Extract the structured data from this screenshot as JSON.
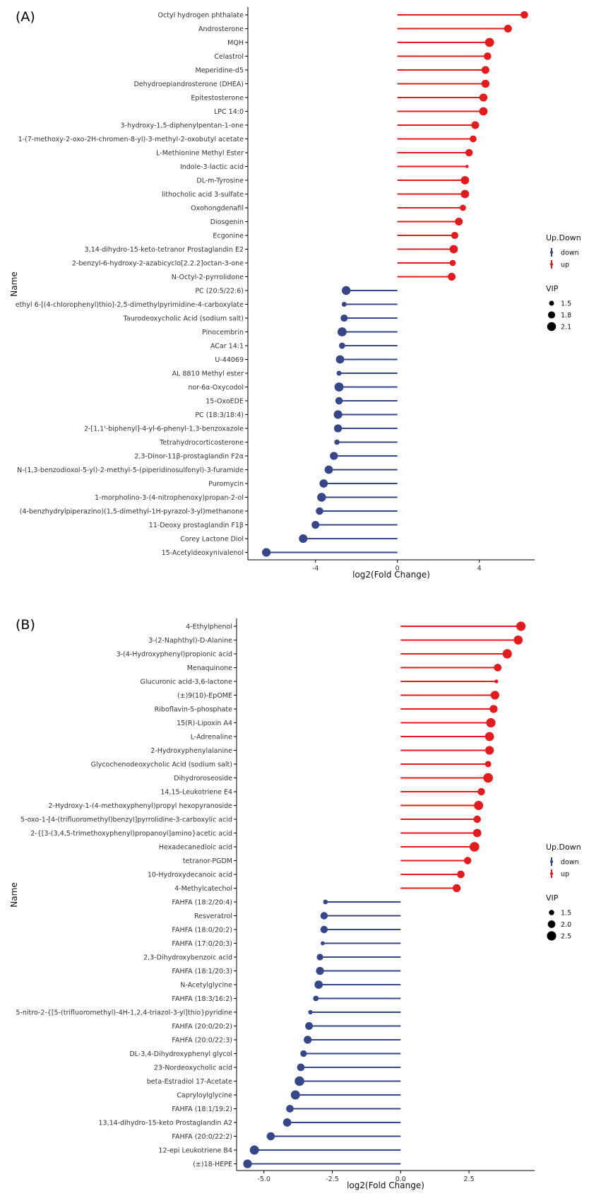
{
  "colors": {
    "up": "#E41A1C",
    "down": "#36468A",
    "axis": "#000000"
  },
  "chart_data": [
    {
      "tag": "(A)",
      "type": "lollipop",
      "xlabel": "log2(Fold Change)",
      "ylabel": "Name",
      "xlim": [
        -7.3,
        6.7
      ],
      "xticks": [
        {
          "v": -4,
          "label": "-4"
        },
        {
          "v": 0,
          "label": "0"
        },
        {
          "v": 4,
          "label": "4"
        }
      ],
      "legend": {
        "position": "right",
        "updown_title": "Up.Down",
        "down_label": "down",
        "up_label": "up",
        "vip_title": "VIP",
        "vip_levels": [
          {
            "label": "1.5",
            "vip": 1.5
          },
          {
            "label": "1.8",
            "vip": 1.8
          },
          {
            "label": "2.1",
            "vip": 2.1
          }
        ],
        "vip_range": [
          1.35,
          2.2
        ]
      },
      "points": [
        {
          "name": "Octyl hydrogen phthalate",
          "fc": 6.2,
          "vip": 1.85,
          "dir": "up"
        },
        {
          "name": "Androsterone",
          "fc": 5.4,
          "vip": 1.9,
          "dir": "up"
        },
        {
          "name": "MQH",
          "fc": 4.5,
          "vip": 2.15,
          "dir": "up"
        },
        {
          "name": "Celastrol",
          "fc": 4.4,
          "vip": 1.85,
          "dir": "up"
        },
        {
          "name": "Meperidine-d5",
          "fc": 4.3,
          "vip": 1.9,
          "dir": "up"
        },
        {
          "name": "Dehydroepiandrosterone (DHEA)",
          "fc": 4.3,
          "vip": 1.95,
          "dir": "up"
        },
        {
          "name": "Epitestosterone",
          "fc": 4.2,
          "vip": 1.95,
          "dir": "up"
        },
        {
          "name": "LPC 14:0",
          "fc": 4.2,
          "vip": 2.0,
          "dir": "up"
        },
        {
          "name": "3-hydroxy-1,5-diphenylpentan-1-one",
          "fc": 3.8,
          "vip": 1.9,
          "dir": "up"
        },
        {
          "name": "1-(7-methoxy-2-oxo-2H-chromen-8-yl)-3-methyl-2-oxobutyl acetate",
          "fc": 3.7,
          "vip": 1.75,
          "dir": "up"
        },
        {
          "name": "L-Methionine Methyl Ester",
          "fc": 3.5,
          "vip": 1.85,
          "dir": "up"
        },
        {
          "name": "Indole-3-lactic acid",
          "fc": 3.4,
          "vip": 1.35,
          "dir": "up"
        },
        {
          "name": "DL-m-Tyrosine",
          "fc": 3.3,
          "vip": 2.0,
          "dir": "up"
        },
        {
          "name": "lithocholic acid 3-sulfate",
          "fc": 3.3,
          "vip": 2.0,
          "dir": "up"
        },
        {
          "name": "Oxohongdenafil",
          "fc": 3.2,
          "vip": 1.65,
          "dir": "up"
        },
        {
          "name": "Diosgenin",
          "fc": 3.0,
          "vip": 1.9,
          "dir": "up"
        },
        {
          "name": "Ecgonine",
          "fc": 2.8,
          "vip": 1.8,
          "dir": "up"
        },
        {
          "name": "3,14-dihydro-15-keto-tetranor Prostaglandin E2",
          "fc": 2.75,
          "vip": 2.0,
          "dir": "up"
        },
        {
          "name": "2-benzyl-6-hydroxy-2-azabicyclo[2.2.2]octan-3-one",
          "fc": 2.7,
          "vip": 1.65,
          "dir": "up"
        },
        {
          "name": "N-Octyl-2-pyrrolidone",
          "fc": 2.65,
          "vip": 1.9,
          "dir": "up"
        },
        {
          "name": "PC (20:5/22:6)",
          "fc": -2.5,
          "vip": 2.1,
          "dir": "down"
        },
        {
          "name": "ethyl 6-[(4-chlorophenyl)thio]-2,5-dimethylpyrimidine-4-carboxylate",
          "fc": -2.6,
          "vip": 1.5,
          "dir": "down"
        },
        {
          "name": "Taurodeoxycholic Acid (sodium salt)",
          "fc": -2.6,
          "vip": 1.8,
          "dir": "down"
        },
        {
          "name": "Pinocembrin",
          "fc": -2.7,
          "vip": 2.15,
          "dir": "down"
        },
        {
          "name": "ACar 14:1",
          "fc": -2.7,
          "vip": 1.65,
          "dir": "down"
        },
        {
          "name": "U-44069",
          "fc": -2.8,
          "vip": 2.0,
          "dir": "down"
        },
        {
          "name": "AL 8810 Methyl ester",
          "fc": -2.85,
          "vip": 1.5,
          "dir": "down"
        },
        {
          "name": "nor-6α-Oxycodol",
          "fc": -2.85,
          "vip": 2.15,
          "dir": "down"
        },
        {
          "name": "15-OxoEDE",
          "fc": -2.85,
          "vip": 1.85,
          "dir": "down"
        },
        {
          "name": "PC (18:3/18:4)",
          "fc": -2.9,
          "vip": 2.05,
          "dir": "down"
        },
        {
          "name": "2-[1,1'-biphenyl]-4-yl-6-phenyl-1,3-benzoxazole",
          "fc": -2.9,
          "vip": 1.95,
          "dir": "down"
        },
        {
          "name": "Tetrahydrocorticosterone",
          "fc": -2.95,
          "vip": 1.55,
          "dir": "down"
        },
        {
          "name": "2,3-Dinor-11β-prostaglandin F2α",
          "fc": -3.1,
          "vip": 1.95,
          "dir": "down"
        },
        {
          "name": "N-(1,3-benzodioxol-5-yl)-2-methyl-5-(piperidinosulfonyl)-3-furamide",
          "fc": -3.35,
          "vip": 2.0,
          "dir": "down"
        },
        {
          "name": "Puromycin",
          "fc": -3.6,
          "vip": 2.0,
          "dir": "down"
        },
        {
          "name": "1-morpholino-3-(4-nitrophenoxy)propan-2-ol",
          "fc": -3.7,
          "vip": 2.1,
          "dir": "down"
        },
        {
          "name": "(4-benzhydrylpiperazino)(1,5-dimethyl-1H-pyrazol-3-yl)methanone",
          "fc": -3.8,
          "vip": 1.85,
          "dir": "down"
        },
        {
          "name": "11-Deoxy prostaglandin F1β",
          "fc": -4.0,
          "vip": 1.9,
          "dir": "down"
        },
        {
          "name": "Corey Lactone Diol",
          "fc": -4.6,
          "vip": 2.05,
          "dir": "down"
        },
        {
          "name": "15-Acetyldeoxynivalenol",
          "fc": -6.4,
          "vip": 2.05,
          "dir": "down"
        }
      ]
    },
    {
      "tag": "(B)",
      "type": "lollipop",
      "xlabel": "log2(Fold Change)",
      "ylabel": "Name",
      "xlim": [
        -6.0,
        4.9
      ],
      "xticks": [
        {
          "v": -5,
          "label": "-5.0"
        },
        {
          "v": -2.5,
          "label": "-2.5"
        },
        {
          "v": 0,
          "label": "0.0"
        },
        {
          "v": 2.5,
          "label": "2.5"
        }
      ],
      "legend": {
        "position": "right",
        "updown_title": "Up.Down",
        "down_label": "down",
        "up_label": "up",
        "vip_title": "VIP",
        "vip_levels": [
          {
            "label": "1.5",
            "vip": 1.5
          },
          {
            "label": "2.0",
            "vip": 2.0
          },
          {
            "label": "2.5",
            "vip": 2.5
          }
        ],
        "vip_range": [
          1.2,
          2.7
        ]
      },
      "points": [
        {
          "name": "4-Ethylphenol",
          "fc": 4.4,
          "vip": 2.5,
          "dir": "up"
        },
        {
          "name": "3-(2-Naphthyl)-D-Alanine",
          "fc": 4.3,
          "vip": 2.4,
          "dir": "up"
        },
        {
          "name": "3-(4-Hydroxyphenyl)propionic acid",
          "fc": 3.9,
          "vip": 2.5,
          "dir": "up"
        },
        {
          "name": "Menaquinone",
          "fc": 3.55,
          "vip": 2.0,
          "dir": "up"
        },
        {
          "name": "Glucuronic acid-3,6-lactone",
          "fc": 3.5,
          "vip": 1.25,
          "dir": "up"
        },
        {
          "name": "(±)9(10)-EpOME",
          "fc": 3.45,
          "vip": 2.3,
          "dir": "up"
        },
        {
          "name": "Riboflavin-5-phosphate",
          "fc": 3.4,
          "vip": 2.1,
          "dir": "up"
        },
        {
          "name": "15(R)-Lipoxin A4",
          "fc": 3.3,
          "vip": 2.5,
          "dir": "up"
        },
        {
          "name": "L-Adrenaline",
          "fc": 3.25,
          "vip": 2.4,
          "dir": "up"
        },
        {
          "name": "2-Hydroxyphenylalanine",
          "fc": 3.25,
          "vip": 2.3,
          "dir": "up"
        },
        {
          "name": "Glycochenodeoxycholic Acid (sodium salt)",
          "fc": 3.2,
          "vip": 1.7,
          "dir": "up"
        },
        {
          "name": "Dihydroroseoside",
          "fc": 3.2,
          "vip": 2.6,
          "dir": "up"
        },
        {
          "name": "14,15-Leukotriene E4",
          "fc": 2.95,
          "vip": 1.95,
          "dir": "up"
        },
        {
          "name": "2-Hydroxy-1-(4-methoxyphenyl)propyl hexopyranoside",
          "fc": 2.85,
          "vip": 2.45,
          "dir": "up"
        },
        {
          "name": "5-oxo-1-[4-(trifluoromethyl)benzyl]pyrrolidine-3-carboxylic acid",
          "fc": 2.8,
          "vip": 1.95,
          "dir": "up"
        },
        {
          "name": "2-{[3-(3,4,5-trimethoxyphenyl)propanoyl]amino}acetic acid",
          "fc": 2.8,
          "vip": 2.2,
          "dir": "up"
        },
        {
          "name": "Hexadecanedioic acid",
          "fc": 2.7,
          "vip": 2.6,
          "dir": "up"
        },
        {
          "name": "tetranor-PGDM",
          "fc": 2.45,
          "vip": 1.95,
          "dir": "up"
        },
        {
          "name": "10-Hydroxydecanoic acid",
          "fc": 2.2,
          "vip": 2.0,
          "dir": "up"
        },
        {
          "name": "4-Methylcatechol",
          "fc": 2.05,
          "vip": 2.1,
          "dir": "up"
        },
        {
          "name": "FAHFA (18:2/20:4)",
          "fc": -2.75,
          "vip": 1.4,
          "dir": "down"
        },
        {
          "name": "Resveratrol",
          "fc": -2.8,
          "vip": 1.95,
          "dir": "down"
        },
        {
          "name": "FAHFA (18:0/20:2)",
          "fc": -2.8,
          "vip": 1.95,
          "dir": "down"
        },
        {
          "name": "FAHFA (17:0/20:3)",
          "fc": -2.85,
          "vip": 1.3,
          "dir": "down"
        },
        {
          "name": "2,3-Dihydroxybenzoic acid",
          "fc": -2.95,
          "vip": 1.75,
          "dir": "down"
        },
        {
          "name": "FAHFA (18:1/20:3)",
          "fc": -2.95,
          "vip": 2.1,
          "dir": "down"
        },
        {
          "name": "N-Acetylglycine",
          "fc": -3.0,
          "vip": 2.2,
          "dir": "down"
        },
        {
          "name": "FAHFA (18:3/16:2)",
          "fc": -3.1,
          "vip": 1.55,
          "dir": "down"
        },
        {
          "name": "5-nitro-2-{[5-(trifluoromethyl)-4H-1,2,4-triazol-3-yl]thio}pyridine",
          "fc": -3.3,
          "vip": 1.35,
          "dir": "down"
        },
        {
          "name": "FAHFA (20:0/20:2)",
          "fc": -3.35,
          "vip": 2.05,
          "dir": "down"
        },
        {
          "name": "FAHFA (20:0/22:3)",
          "fc": -3.4,
          "vip": 2.1,
          "dir": "down"
        },
        {
          "name": "DL-3,4-Dihydroxyphenyl glycol",
          "fc": -3.55,
          "vip": 1.75,
          "dir": "down"
        },
        {
          "name": "23-Nordeoxycholic acid",
          "fc": -3.65,
          "vip": 2.0,
          "dir": "down"
        },
        {
          "name": "beta-Estradiol 17-Acetate",
          "fc": -3.7,
          "vip": 2.6,
          "dir": "down"
        },
        {
          "name": "Capryloylglycine",
          "fc": -3.85,
          "vip": 2.45,
          "dir": "down"
        },
        {
          "name": "FAHFA (18:1/19:2)",
          "fc": -4.05,
          "vip": 2.0,
          "dir": "down"
        },
        {
          "name": "13,14-dihydro-15-keto Prostaglandin A2",
          "fc": -4.15,
          "vip": 2.2,
          "dir": "down"
        },
        {
          "name": "FAHFA (20:0/22:2)",
          "fc": -4.75,
          "vip": 2.15,
          "dir": "down"
        },
        {
          "name": "12-epi Leukotriene B4",
          "fc": -5.35,
          "vip": 2.45,
          "dir": "down"
        },
        {
          "name": "(±)18-HEPE",
          "fc": -5.6,
          "vip": 2.3,
          "dir": "down"
        }
      ]
    }
  ]
}
